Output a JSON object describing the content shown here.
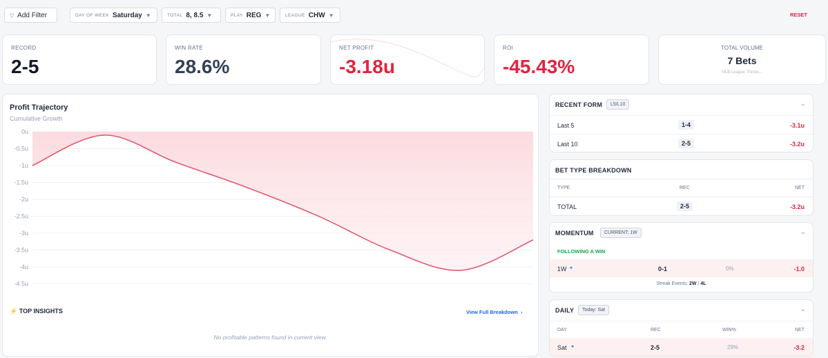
{
  "filters": {
    "add": "Add Filter",
    "items": [
      {
        "label": "DAY OF WEEK",
        "value": "Saturday"
      },
      {
        "label": "TOTAL",
        "value": "8, 8.5"
      },
      {
        "label": "PLAY",
        "value": "REG"
      },
      {
        "label": "LEAGUE",
        "value": "CHW"
      }
    ],
    "reset": "RESET"
  },
  "stats": [
    {
      "label": "RECORD",
      "value": "2-5"
    },
    {
      "label": "WIN RATE",
      "value": "28.6%"
    },
    {
      "label": "NET PROFIT",
      "value": "-3.18u"
    },
    {
      "label": "ROI",
      "value": "-45.43%"
    }
  ],
  "volume": {
    "label": "TOTAL VOLUME",
    "value": "7 Bets",
    "sub": "MLB League Trends..."
  },
  "chart_data": {
    "type": "line",
    "title": "Profit Trajectory",
    "subtitle": "Cumulative Growth",
    "values": [
      -1,
      -0.1,
      -0.9,
      -1.65,
      -2.5,
      -3.5,
      -4.1,
      -3.2
    ],
    "color": "#e05a6e",
    "ylim": [
      -4.9,
      0
    ],
    "yticks": [
      {
        "value": 0,
        "label": "0u"
      },
      {
        "value": -0.5,
        "label": "-0.5u"
      },
      {
        "value": -1,
        "label": "-1u"
      },
      {
        "value": -1.5,
        "label": "-1.5u"
      },
      {
        "value": -2,
        "label": "-2u"
      },
      {
        "value": -2.5,
        "label": "-2.5u"
      },
      {
        "value": -3,
        "label": "-3u"
      },
      {
        "value": -3.5,
        "label": "-3.5u"
      },
      {
        "value": -4,
        "label": "-4u"
      },
      {
        "value": -4.5,
        "label": "-4.5u"
      }
    ],
    "grid": true
  },
  "insights": {
    "title": "TOP INSIGHTS",
    "link": "View Full Breakdown",
    "empty": "No profitable patterns found in current view."
  },
  "recent_form": {
    "title": "RECENT FORM",
    "badge": "L5/L10",
    "rows": [
      [
        "Last 5",
        "1-4",
        "-3.1u"
      ],
      [
        "Last 10",
        "2-5",
        "-3.2u"
      ]
    ]
  },
  "bet_type": {
    "title": "BET TYPE BREAKDOWN",
    "header": [
      "TYPE",
      "REC",
      "NET"
    ],
    "rows": [
      [
        "TOTAL",
        "2-5",
        "-3.2u"
      ]
    ]
  },
  "momentum": {
    "title": "MOMENTUM",
    "badge": "CURRENT: 1W",
    "section": "FOLLOWING A WIN",
    "rows": [
      [
        "1W",
        "0-1",
        "0%",
        "-1.0"
      ]
    ],
    "footer_label": "Streak Events:",
    "footer_w": "2W",
    "footer_sep": "/",
    "footer_l": "4L"
  },
  "daily": {
    "title": "DAILY",
    "badge": "Today: Sat",
    "header": [
      "DAY",
      "REC",
      "WIN%",
      "NET"
    ],
    "rows": [
      [
        "Sat",
        "2-5",
        "29%",
        "-3.2"
      ]
    ]
  }
}
